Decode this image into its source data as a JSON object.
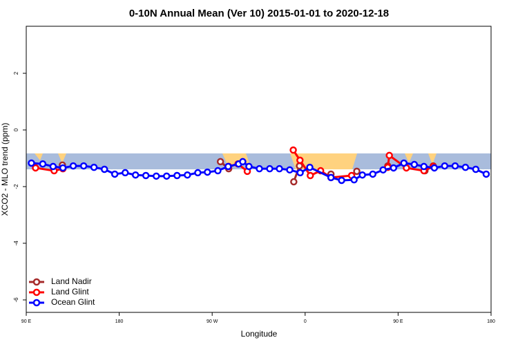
{
  "chart_data": {
    "type": "line",
    "title": "0-10N Annual Mean (Ver 10)   2015-01-01 to 2020-12-18",
    "x_label": "Longitude",
    "y_label": "XCO2 - MLO trend (ppm)",
    "xlim": [
      90,
      540
    ],
    "ylim": [
      -6.44,
      3.66
    ],
    "xticks": [
      {
        "value": 90,
        "label": "90 E"
      },
      {
        "value": 180,
        "label": "180"
      },
      {
        "value": 270,
        "label": "90 W"
      },
      {
        "value": 360,
        "label": "0"
      },
      {
        "value": 450,
        "label": "90 E"
      },
      {
        "value": 540,
        "label": "180"
      }
    ],
    "yticks": [
      2,
      0,
      -2,
      -4,
      -6
    ],
    "legend": "bottom-left",
    "series": [
      {
        "name": "Land Nadir",
        "color": "#a52a2a",
        "x": [
          125,
          null,
          278,
          286,
          null,
          349,
          354.5,
          null,
          385,
          null,
          410,
          null,
          440,
          null,
          476,
          484
        ],
        "values": [
          -1.24,
          null,
          -1.12,
          -1.37,
          null,
          -1.83,
          -1.27,
          null,
          -1.56,
          null,
          -1.46,
          null,
          -1.27,
          null,
          -1.44,
          -1.27
        ]
      },
      {
        "name": "Land Glint",
        "color": "#ff0000",
        "x": [
          99,
          117,
          125.5,
          null,
          286,
          295,
          304,
          null,
          348.5,
          355,
          365,
          375,
          385,
          405,
          null,
          440,
          441.5,
          458,
          475,
          484
        ],
        "values": [
          -1.34,
          -1.44,
          -1.37,
          null,
          -1.29,
          -1.2,
          -1.46,
          null,
          -0.71,
          -1.07,
          -1.61,
          -1.44,
          -1.68,
          -1.61,
          null,
          -1.32,
          -0.9,
          -1.34,
          -1.44,
          -1.29
        ]
      },
      {
        "name": "Ocean Glint",
        "color": "#0000ff",
        "x": [
          95,
          106,
          116,
          125.5,
          135.5,
          145.6,
          155.6,
          165.7,
          175.7,
          185.8,
          195.8,
          205.8,
          215.9,
          225.9,
          236,
          246,
          256.1,
          265.4,
          275.5,
          285.5,
          295.6,
          299.6,
          305.6,
          315.7,
          325.7,
          335.1,
          345.1,
          355.2,
          364.5,
          385,
          395.3,
          407.4,
          415.4,
          425.5,
          435.5,
          445.6,
          455.6,
          465.7,
          475,
          485.1,
          495.1,
          505.2,
          515.2,
          525.2,
          535.3
        ],
        "values": [
          -1.17,
          -1.2,
          -1.29,
          -1.34,
          -1.27,
          -1.27,
          -1.32,
          -1.39,
          -1.56,
          -1.51,
          -1.59,
          -1.61,
          -1.63,
          -1.63,
          -1.61,
          -1.59,
          -1.51,
          -1.49,
          -1.44,
          -1.29,
          -1.2,
          -1.12,
          -1.29,
          -1.37,
          -1.37,
          -1.37,
          -1.41,
          -1.51,
          -1.32,
          -1.68,
          -1.78,
          -1.76,
          -1.59,
          -1.56,
          -1.41,
          -1.34,
          -1.17,
          -1.22,
          -1.29,
          -1.34,
          -1.27,
          -1.27,
          -1.32,
          -1.39,
          -1.56
        ]
      }
    ]
  }
}
